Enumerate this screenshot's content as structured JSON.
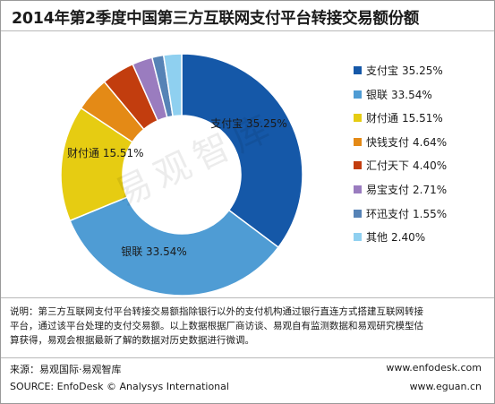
{
  "title": "2014年第2季度中国第三方互联网支付平台转接交易额份额",
  "chart_data": {
    "type": "pie",
    "title": "2014年第2季度中国第三方互联网支付平台转接交易额份额",
    "legend_position": "right",
    "categories": [
      "支付宝",
      "银联",
      "财付通",
      "快钱支付",
      "汇付天下",
      "易宝支付",
      "环迅支付",
      "其他"
    ],
    "values": [
      35.25,
      33.54,
      15.51,
      4.64,
      4.4,
      2.71,
      1.55,
      2.4
    ],
    "display": [
      "35.25%",
      "33.54%",
      "15.51%",
      "4.64%",
      "4.40%",
      "2.71%",
      "1.55%",
      "2.40%"
    ],
    "colors": [
      "#1558a8",
      "#4f9cd4",
      "#e6cc12",
      "#e48a16",
      "#c23d0e",
      "#9a7cbf",
      "#5683b6",
      "#8fd0f0"
    ]
  },
  "watermark": "易观智库",
  "note": {
    "line1": "说明：第三方互联网支付平台转接交易额指除银行以外的支付机构通过银行直连方式搭建互联网转接",
    "line2": "平台，通过该平台处理的支付交易额。以上数据根据厂商访谈、易观自有监测数据和易观研究模型估",
    "line3": "算获得，易观会根据最新了解的数据对历史数据进行微调。"
  },
  "footer": {
    "source_cn": "来源：易观国际·易观智库",
    "source_en": "SOURCE: EnfoDesk © Analysys International",
    "url1": "www.enfodesk.com",
    "url2": "www.eguan.cn"
  }
}
